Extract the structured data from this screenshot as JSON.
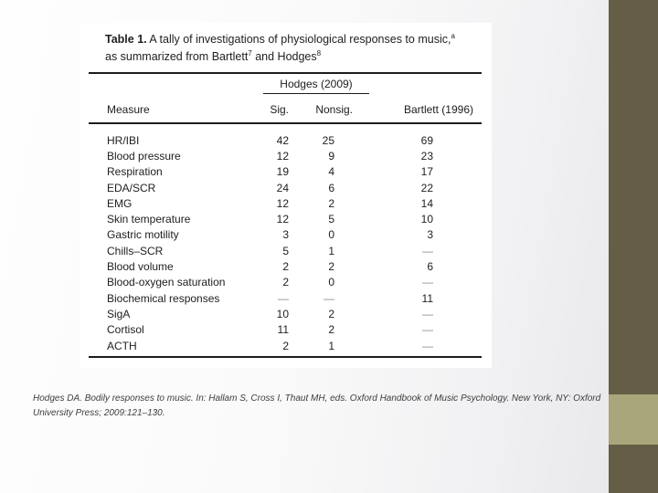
{
  "figure": {
    "title": {
      "bold": "Table 1.",
      "line1_rest": " A tally of investigations of physiological responses to music,",
      "line1_sup": "a",
      "line2_a": "as summarized from Bartlett",
      "line2_sup1": "7",
      "line2_b": " and Hodges",
      "line2_sup2": "8"
    },
    "spanner_label": "Hodges (2009)",
    "columns": {
      "measure": "Measure",
      "sig": "Sig.",
      "nonsig": "Nonsig.",
      "bartlett": "Bartlett (1996)"
    },
    "rows": [
      {
        "measure": "HR/IBI",
        "sig": "42",
        "nonsig": "25",
        "bartlett": "69"
      },
      {
        "measure": "Blood pressure",
        "sig": "12",
        "nonsig": "9",
        "bartlett": "23"
      },
      {
        "measure": "Respiration",
        "sig": "19",
        "nonsig": "4",
        "bartlett": "17"
      },
      {
        "measure": "EDA/SCR",
        "sig": "24",
        "nonsig": "6",
        "bartlett": "22"
      },
      {
        "measure": "EMG",
        "sig": "12",
        "nonsig": "2",
        "bartlett": "14"
      },
      {
        "measure": "Skin temperature",
        "sig": "12",
        "nonsig": "5",
        "bartlett": "10"
      },
      {
        "measure": "Gastric motility",
        "sig": "3",
        "nonsig": "0",
        "bartlett": "3"
      },
      {
        "measure": "Chills–SCR",
        "sig": "5",
        "nonsig": "1",
        "bartlett": "—"
      },
      {
        "measure": "Blood volume",
        "sig": "2",
        "nonsig": "2",
        "bartlett": "6"
      },
      {
        "measure": "Blood-oxygen saturation",
        "sig": "2",
        "nonsig": "0",
        "bartlett": "—"
      },
      {
        "measure": "Biochemical responses",
        "sig": "—",
        "nonsig": "—",
        "bartlett": "11"
      },
      {
        "measure": "SigA",
        "sig": "10",
        "nonsig": "2",
        "bartlett": "—"
      },
      {
        "measure": "Cortisol",
        "sig": "11",
        "nonsig": "2",
        "bartlett": "—"
      },
      {
        "measure": "ACTH",
        "sig": "2",
        "nonsig": "1",
        "bartlett": "—"
      }
    ]
  },
  "citation": "Hodges DA. Bodily responses to music. In: Hallam S, Cross I, Thaut MH, eds. Oxford Handbook of Music Psychology. New York, NY: Oxford University Press; 2009:121–130.",
  "colors": {
    "accent_band": "#655d45",
    "accent_square": "#aaa67b"
  }
}
